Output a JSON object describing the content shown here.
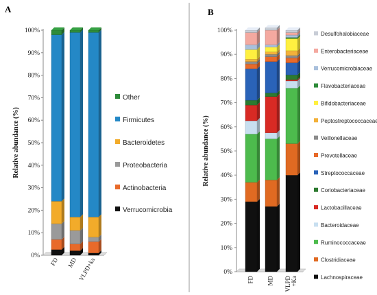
{
  "colors": {
    "Other": "#2e8b3a",
    "Firmicutes": "#2488c6",
    "Bacteroidetes": "#f2ab2a",
    "Proteobacteria": "#9a9a9a",
    "Actinobacteria": "#e86a2a",
    "Verrucomicrobia": "#111111",
    "Desulfohalobiaceae": "#c8cdd6",
    "Enterobacteriaceae": "#f4a9a0",
    "Verrucomicrobiaceae": "#a9c0dc",
    "Flavobacteriaceae": "#2e8b3a",
    "Bifidobacteriaceae": "#fff040",
    "Peptostreptococcaceae": "#f3b13a",
    "Veillonellaceae": "#8c8c8c",
    "Prevotellaceae": "#e86a2a",
    "Streptococcaceae": "#2a63b8",
    "Coriobacteriaceae": "#2d7a30",
    "Lactobacillaceae": "#d82a24",
    "Bacteroidaceae": "#c8dff0",
    "Ruminococcaceae": "#4dbb4d",
    "Clostridiaceae": "#e06a22",
    "Lachnospiraceae": "#101010"
  },
  "chart_data": [
    {
      "panel": "A",
      "type": "bar",
      "stacked": true,
      "ylabel": "Relative abundance (%)",
      "ylim": [
        0,
        100
      ],
      "yticks": [
        "0%",
        "10%",
        "20%",
        "30%",
        "40%",
        "50%",
        "60%",
        "70%",
        "80%",
        "90%",
        "100%"
      ],
      "categories": [
        "FD",
        "MD",
        "VLPD+ka"
      ],
      "legend_position": "right",
      "legend": [
        "Other",
        "Firmicutes",
        "Bacteroidetes",
        "Proteobacteria",
        "Actinobacteria",
        "Verrucomicrobia"
      ],
      "series": [
        {
          "name": "Verrucomicrobia",
          "values": [
            2.5,
            2,
            1
          ]
        },
        {
          "name": "Actinobacteria",
          "values": [
            4.5,
            3,
            5
          ]
        },
        {
          "name": "Proteobacteria",
          "values": [
            7,
            6,
            2
          ]
        },
        {
          "name": "Bacteroidetes",
          "values": [
            10,
            6,
            9
          ]
        },
        {
          "name": "Firmicutes",
          "values": [
            74,
            82,
            82
          ]
        },
        {
          "name": "Other",
          "values": [
            2,
            1,
            1
          ]
        }
      ]
    },
    {
      "panel": "B",
      "type": "bar",
      "stacked": true,
      "ylabel": "Relative abundance (%)",
      "ylim": [
        0,
        100
      ],
      "yticks": [
        "0%",
        "10%",
        "20%",
        "30%",
        "40%",
        "50%",
        "60%",
        "70%",
        "80%",
        "90%",
        "100%"
      ],
      "categories": [
        "FD",
        "MD",
        "VLPD\n+Ka"
      ],
      "legend_position": "right",
      "legend": [
        "Desulfohalobiaceae",
        "Enterobacteriaceae",
        "Verrucomicrobiaceae",
        "Flavobacteriaceae",
        "Bifidobacteriaceae",
        "Peptostreptococcaceae",
        "Veillonellaceae",
        "Prevotellaceae",
        "Streptococcaceae",
        "Coriobacteriaceae",
        "Lactobacillaceae",
        "Bacteroidaceae",
        "Ruminococcaceae",
        "Clostridiaceae",
        "Lachnospiraceae"
      ],
      "series": [
        {
          "name": "Lachnospiraceae",
          "values": [
            29,
            27,
            40
          ]
        },
        {
          "name": "Clostridiaceae",
          "values": [
            8,
            11,
            13
          ]
        },
        {
          "name": "Ruminococcaceae",
          "values": [
            20,
            17,
            23
          ]
        },
        {
          "name": "Bacteroidaceae",
          "values": [
            5.5,
            2.5,
            3
          ]
        },
        {
          "name": "Lactobacillaceae",
          "values": [
            6.5,
            15,
            0.5
          ]
        },
        {
          "name": "Coriobacteriaceae",
          "values": [
            2,
            1.5,
            2
          ]
        },
        {
          "name": "Streptococcaceae",
          "values": [
            13,
            13,
            5
          ]
        },
        {
          "name": "Prevotellaceae",
          "values": [
            2,
            2,
            2
          ]
        },
        {
          "name": "Veillonellaceae",
          "values": [
            1,
            1,
            1
          ]
        },
        {
          "name": "Peptostreptococcaceae",
          "values": [
            1,
            1,
            2
          ]
        },
        {
          "name": "Bifidobacteriaceae",
          "values": [
            4,
            2,
            5
          ]
        },
        {
          "name": "Flavobacteriaceae",
          "values": [
            0,
            0,
            0.5
          ]
        },
        {
          "name": "Verrucomicrobiaceae",
          "values": [
            2,
            1,
            1
          ]
        },
        {
          "name": "Enterobacteriaceae",
          "values": [
            5,
            6,
            1
          ]
        },
        {
          "name": "Desulfohalobiaceae",
          "values": [
            1,
            1,
            1
          ]
        }
      ]
    }
  ],
  "panel_letters": [
    "A",
    "B"
  ]
}
